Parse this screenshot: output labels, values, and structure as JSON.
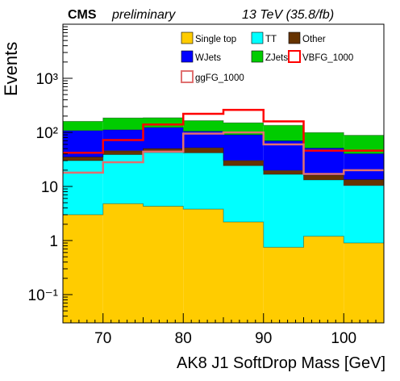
{
  "header": {
    "experiment": "CMS",
    "status": "preliminary",
    "energy": "13 TeV (35.8/fb)"
  },
  "chart_data": {
    "type": "histogram",
    "stacked": true,
    "yscale": "log",
    "xlabel": "AK8 J1 SoftDrop Mass [GeV]",
    "ylabel": "Events",
    "xlim": [
      65,
      105
    ],
    "ylim": [
      0.03,
      10000
    ],
    "bin_edges": [
      65,
      70,
      75,
      80,
      85,
      90,
      95,
      100,
      105
    ],
    "x_ticks": [
      70,
      80,
      90,
      100
    ],
    "x_tick_labels": [
      "70",
      "80",
      "90",
      "100"
    ],
    "y_ticks": [
      0.1,
      1,
      10,
      100,
      1000
    ],
    "y_tick_labels": [
      "10⁻¹",
      "1",
      "10",
      "10²",
      "10³"
    ],
    "legend": {
      "position": "top-right",
      "entries": [
        "Single top",
        "TT",
        "Other",
        "WJets",
        "ZJets",
        "VBFG_1000",
        "ggFG_1000"
      ]
    },
    "stack": [
      {
        "name": "Single top",
        "color": "#ffcc00",
        "values": [
          3.0,
          4.8,
          4.3,
          3.8,
          2.2,
          0.75,
          1.2,
          0.9
        ]
      },
      {
        "name": "TT",
        "color": "#00ffff",
        "values": [
          27,
          34,
          38,
          38,
          22,
          16,
          12,
          9.5
        ]
      },
      {
        "name": "Other",
        "color": "#663300",
        "values": [
          5,
          7,
          8,
          10,
          6,
          3,
          3,
          3
        ]
      },
      {
        "name": "WJets",
        "color": "#0000ff",
        "values": [
          73,
          66,
          73,
          53,
          60,
          50,
          35,
          27
        ]
      },
      {
        "name": "ZJets",
        "color": "#00cc00",
        "values": [
          52,
          73,
          63,
          60,
          60,
          65,
          48,
          48
        ]
      }
    ],
    "overlays": [
      {
        "name": "VBFG_1000",
        "color": "#ff0000",
        "values": [
          42,
          72,
          140,
          220,
          260,
          160,
          46,
          46
        ]
      },
      {
        "name": "ggFG_1000",
        "color": "#e07070",
        "values": [
          18,
          28,
          44,
          95,
          100,
          60,
          17,
          20
        ]
      }
    ]
  }
}
